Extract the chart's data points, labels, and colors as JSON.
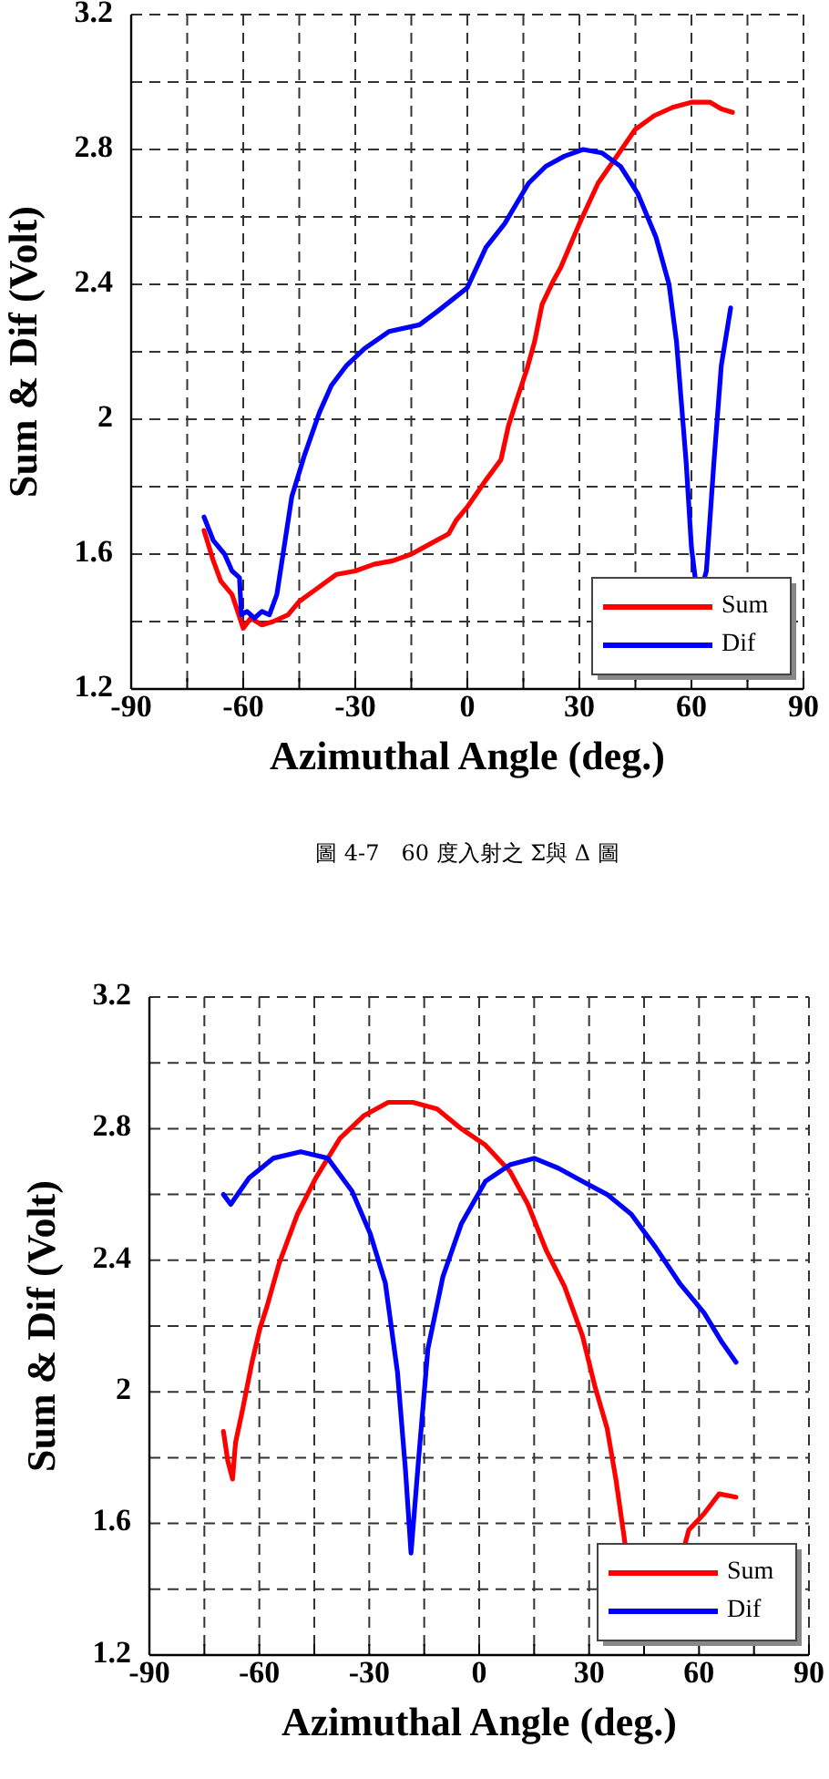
{
  "chart_data": [
    {
      "type": "line",
      "xlabel": "Azimuthal Angle (deg.)",
      "ylabel": "Sum & Dif (Volt)",
      "annotations": [
        "圖 4-7　60 度入射之 Σ與 Δ 圖"
      ],
      "xlim": [
        -90,
        90
      ],
      "xticks": [
        -90,
        {
          "value": -75,
          "label": null
        },
        -60,
        {
          "value": -45,
          "label": null
        },
        -30,
        {
          "value": -15,
          "label": null
        },
        0,
        {
          "value": 15,
          "label": null
        },
        30,
        {
          "value": 45,
          "label": null
        },
        60,
        {
          "value": 75,
          "label": null
        },
        90
      ],
      "ylim": [
        1.2,
        3.2
      ],
      "yticks": [
        1.2,
        {
          "value": 1.4,
          "label": null
        },
        1.6,
        {
          "value": 1.8,
          "label": null
        },
        2,
        {
          "value": 2.2,
          "label": null
        },
        2.4,
        {
          "value": 2.6,
          "label": null
        },
        2.8,
        {
          "value": 3.0,
          "label": null
        },
        3.2
      ],
      "grid": true,
      "legend": "bottom right",
      "series": [
        {
          "name": "Sum",
          "color": "#ff0000",
          "x": [
            -70.5,
            -68,
            -66,
            -63,
            -60,
            -58,
            -55,
            -52,
            -48,
            -45,
            -40,
            -35,
            -30,
            -25,
            -20,
            -15,
            -10,
            -5,
            -3,
            0,
            5,
            9,
            11,
            13,
            16,
            18,
            20,
            23,
            25,
            30,
            35,
            40,
            45,
            50,
            55,
            60,
            65,
            68,
            71
          ],
          "values": [
            1.67,
            1.58,
            1.52,
            1.48,
            1.38,
            1.41,
            1.39,
            1.4,
            1.42,
            1.46,
            1.5,
            1.54,
            1.55,
            1.57,
            1.58,
            1.6,
            1.63,
            1.66,
            1.7,
            1.74,
            1.82,
            1.88,
            1.98,
            2.05,
            2.15,
            2.23,
            2.34,
            2.41,
            2.45,
            2.58,
            2.7,
            2.78,
            2.86,
            2.9,
            2.925,
            2.94,
            2.94,
            2.92,
            2.91
          ]
        },
        {
          "name": "Dif",
          "color": "#0000ff",
          "x": [
            -70.5,
            -68,
            -65,
            -63,
            -61,
            -60.5,
            -59,
            -57,
            -55,
            -53,
            -51,
            -47,
            -43.7,
            -39.6,
            -36.4,
            -32.3,
            -27.5,
            -21,
            -12.8,
            -8,
            0,
            5,
            10,
            16.4,
            21,
            26,
            31,
            36,
            41,
            45.6,
            50.5,
            54,
            56,
            58.6,
            60,
            61,
            null,
            63.5,
            64,
            66,
            68,
            70.5
          ],
          "values": [
            1.71,
            1.64,
            1.6,
            1.55,
            1.53,
            1.42,
            1.43,
            1.41,
            1.43,
            1.42,
            1.48,
            1.77,
            1.89,
            2.02,
            2.1,
            2.16,
            2.21,
            2.26,
            2.28,
            2.32,
            2.39,
            2.51,
            2.58,
            2.7,
            2.75,
            2.78,
            2.8,
            2.79,
            2.75,
            2.67,
            2.54,
            2.4,
            2.23,
            1.87,
            1.62,
            1.53,
            null,
            1.53,
            1.55,
            1.87,
            2.16,
            2.33
          ]
        }
      ]
    },
    {
      "type": "line",
      "xlabel": "Azimuthal Angle (deg.)",
      "ylabel": "Sum & Dif (Volt)",
      "xlim": [
        -90,
        90
      ],
      "xticks": [
        -90,
        {
          "value": -75,
          "label": null
        },
        -60,
        {
          "value": -45,
          "label": null
        },
        -30,
        {
          "value": -15,
          "label": null
        },
        0,
        {
          "value": 15,
          "label": null
        },
        30,
        {
          "value": 45,
          "label": null
        },
        60,
        {
          "value": 75,
          "label": null
        },
        90
      ],
      "ylim": [
        1.2,
        3.2
      ],
      "yticks": [
        1.2,
        {
          "value": 1.4,
          "label": null
        },
        1.6,
        {
          "value": 1.8,
          "label": null
        },
        2,
        {
          "value": 2.2,
          "label": null
        },
        2.4,
        {
          "value": 2.6,
          "label": null
        },
        2.8,
        {
          "value": 3.0,
          "label": null
        },
        3.2
      ],
      "grid": true,
      "legend": "bottom right",
      "series": [
        {
          "name": "Sum",
          "color": "#ff0000",
          "x": [
            -69.8,
            -68.6,
            -67.3,
            -66.5,
            -64.5,
            -62,
            -59.9,
            -57.9,
            -54.6,
            -49.6,
            -44.6,
            -38,
            -31.4,
            -24.8,
            -18.1,
            -11.5,
            -4.9,
            1.7,
            8.4,
            13.3,
            18.3,
            23.3,
            28.2,
            31.5,
            34.9,
            37.3,
            39.8,
            null,
            56,
            57.2,
            61.4,
            65.5,
            70.1
          ],
          "values": [
            1.88,
            1.79,
            1.735,
            1.845,
            1.95,
            2.09,
            2.19,
            2.26,
            2.39,
            2.54,
            2.65,
            2.77,
            2.84,
            2.88,
            2.88,
            2.86,
            2.8,
            2.75,
            2.67,
            2.57,
            2.43,
            2.32,
            2.17,
            2.02,
            1.89,
            1.735,
            1.54,
            null,
            1.53,
            1.58,
            1.63,
            1.69,
            1.68
          ]
        },
        {
          "name": "Dif",
          "color": "#0000ff",
          "x": [
            -69.8,
            -67.8,
            -62.8,
            -56.2,
            -48.7,
            -41.3,
            -34.7,
            -29.7,
            -25.6,
            -22.3,
            -20.1,
            -18.6,
            -16.5,
            -14,
            -9.9,
            -4.9,
            1.7,
            8.4,
            15,
            21.6,
            28.2,
            34.9,
            41.5,
            48.1,
            54.7,
            61.4,
            66.3,
            70.1
          ],
          "values": [
            2.6,
            2.57,
            2.65,
            2.71,
            2.73,
            2.71,
            2.61,
            2.48,
            2.33,
            2.06,
            1.76,
            1.51,
            1.8,
            2.13,
            2.35,
            2.51,
            2.64,
            2.69,
            2.71,
            2.68,
            2.64,
            2.6,
            2.54,
            2.44,
            2.33,
            2.24,
            2.15,
            2.09
          ]
        }
      ]
    }
  ]
}
